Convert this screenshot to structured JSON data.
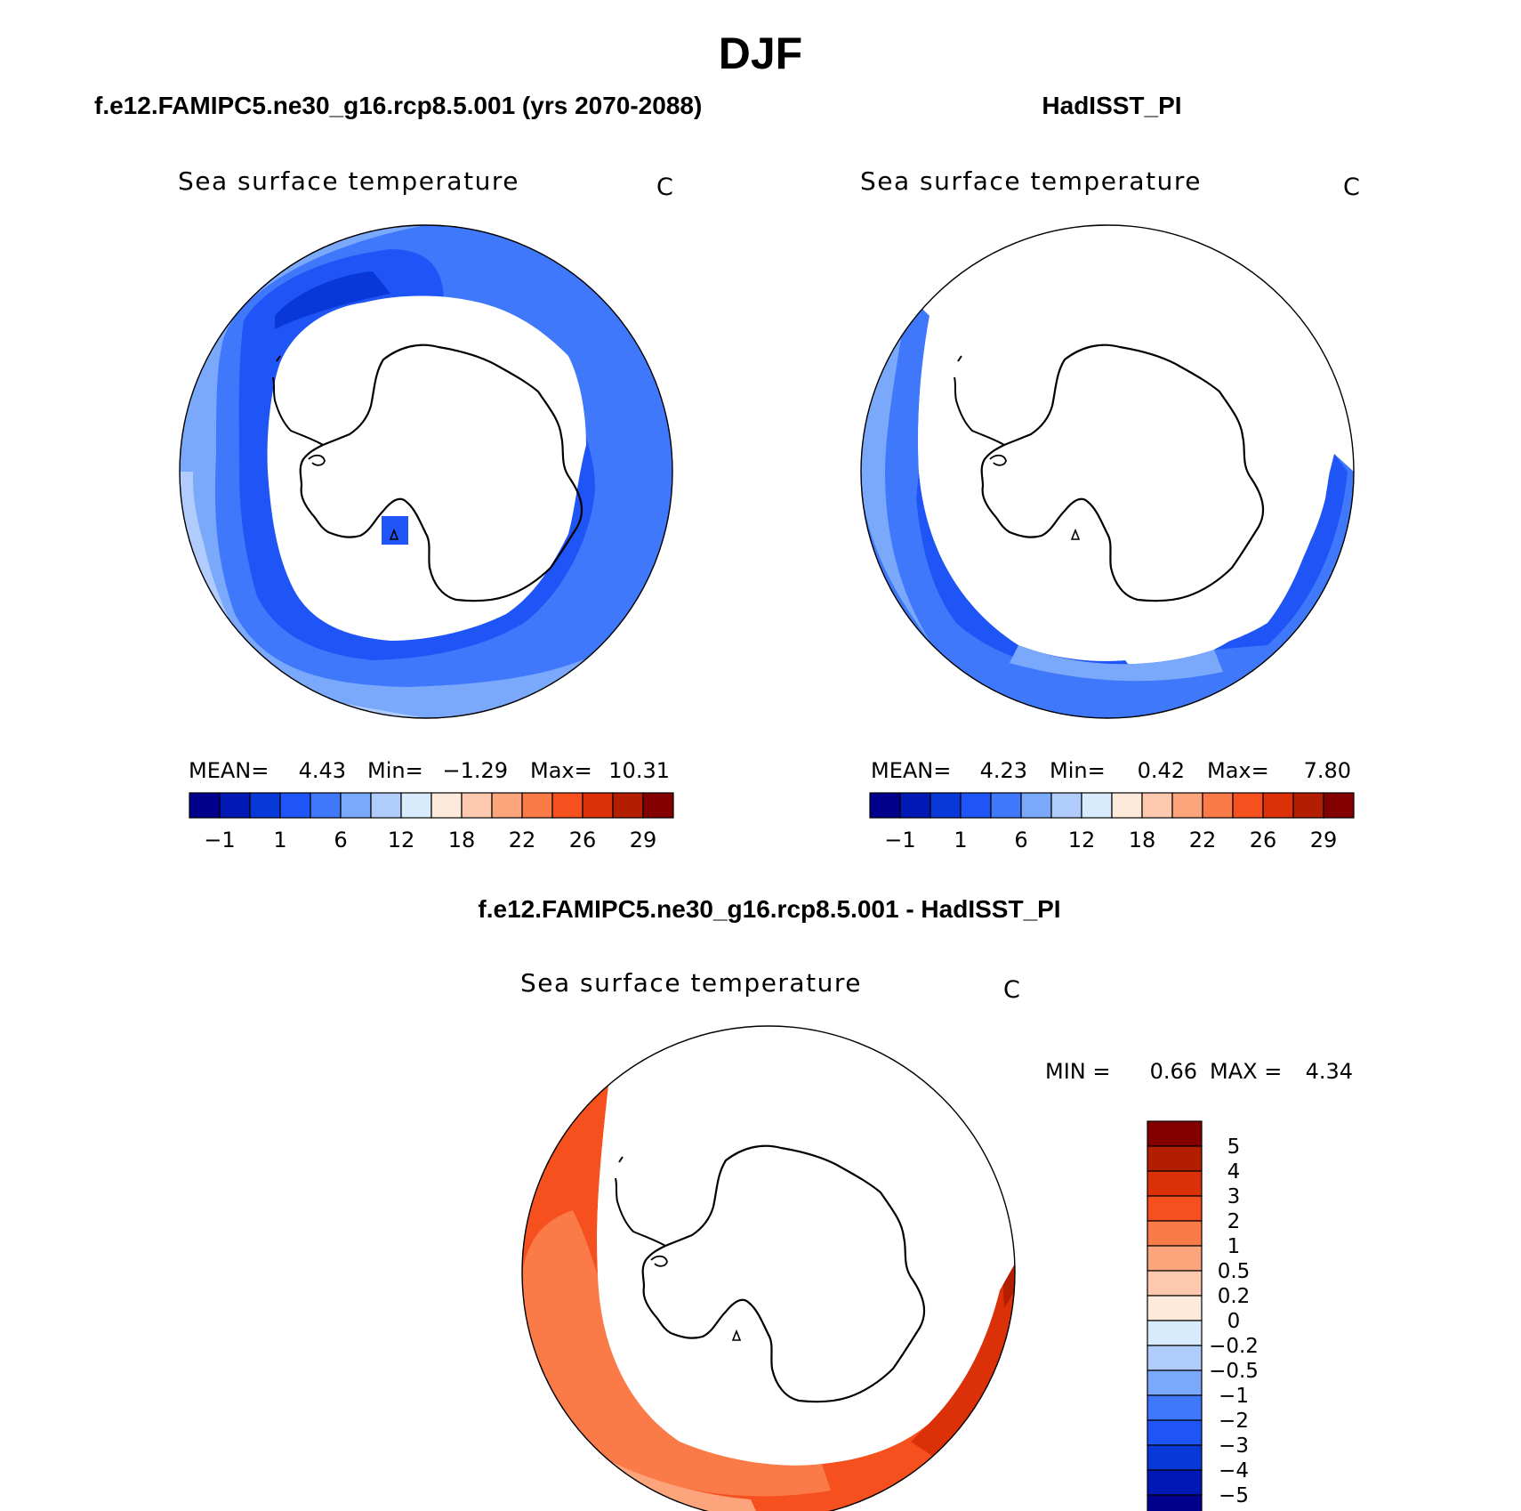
{
  "figure": {
    "title": "DJF"
  },
  "panels": [
    {
      "heading": "f.e12.FAMIPC5.ne30_g16.rcp8.5.001 (yrs 2070-2088)",
      "variable": "Sea surface temperature",
      "units": "C",
      "stats": {
        "mean_label": "MEAN=",
        "mean": "4.43",
        "min_label": "Min=",
        "min": "−1.29",
        "max_label": "Max=",
        "max": "10.31"
      },
      "colorbar_ticks": [
        "−1",
        "1",
        "6",
        "12",
        "18",
        "22",
        "26",
        "29"
      ]
    },
    {
      "heading": "HadISST_PI",
      "variable": "Sea surface temperature",
      "units": "C",
      "stats": {
        "mean_label": "MEAN=",
        "mean": "4.23",
        "min_label": "Min=",
        "min": "0.42",
        "max_label": "Max=",
        "max": "7.80"
      },
      "colorbar_ticks": [
        "−1",
        "1",
        "6",
        "12",
        "18",
        "22",
        "26",
        "29"
      ]
    }
  ],
  "diff_panel": {
    "heading": "f.e12.FAMIPC5.ne30_g16.rcp8.5.001 - HadISST_PI",
    "variable": "Sea surface temperature",
    "units": "C",
    "stats": {
      "min_label": "MIN =",
      "min": "0.66",
      "max_label": "MAX =",
      "max": "4.34"
    },
    "colorbar_ticks": [
      "5",
      "4",
      "3",
      "2",
      "1",
      "0.5",
      "0.2",
      "0",
      "−0.2",
      "−0.5",
      "−1",
      "−2",
      "−3",
      "−4",
      "−5"
    ]
  },
  "colors": {
    "abs_scale": [
      "#00008c",
      "#0018b4",
      "#0838d8",
      "#1f55f6",
      "#3f78fa",
      "#7aa8fb",
      "#b0ccfc",
      "#d8ebfc",
      "#fdeada",
      "#fdc8ad",
      "#fca47c",
      "#fa7a48",
      "#f6501e",
      "#dc3008",
      "#b41e00",
      "#820000"
    ],
    "diff_scale": [
      "#820000",
      "#b41e00",
      "#dc3008",
      "#f6501e",
      "#fa7a48",
      "#fca47c",
      "#fdc8ad",
      "#fdeada",
      "#d8ebfc",
      "#b0ccfc",
      "#7aa8fb",
      "#3f78fa",
      "#1f55f6",
      "#0838d8",
      "#0018b4",
      "#00008c"
    ]
  },
  "chart_data": {
    "type": "map",
    "projection": "south-polar-stereographic",
    "maps": [
      "rcp8.5 2070-2088 DJF SST",
      "HadISST_PI DJF SST",
      "difference"
    ]
  }
}
